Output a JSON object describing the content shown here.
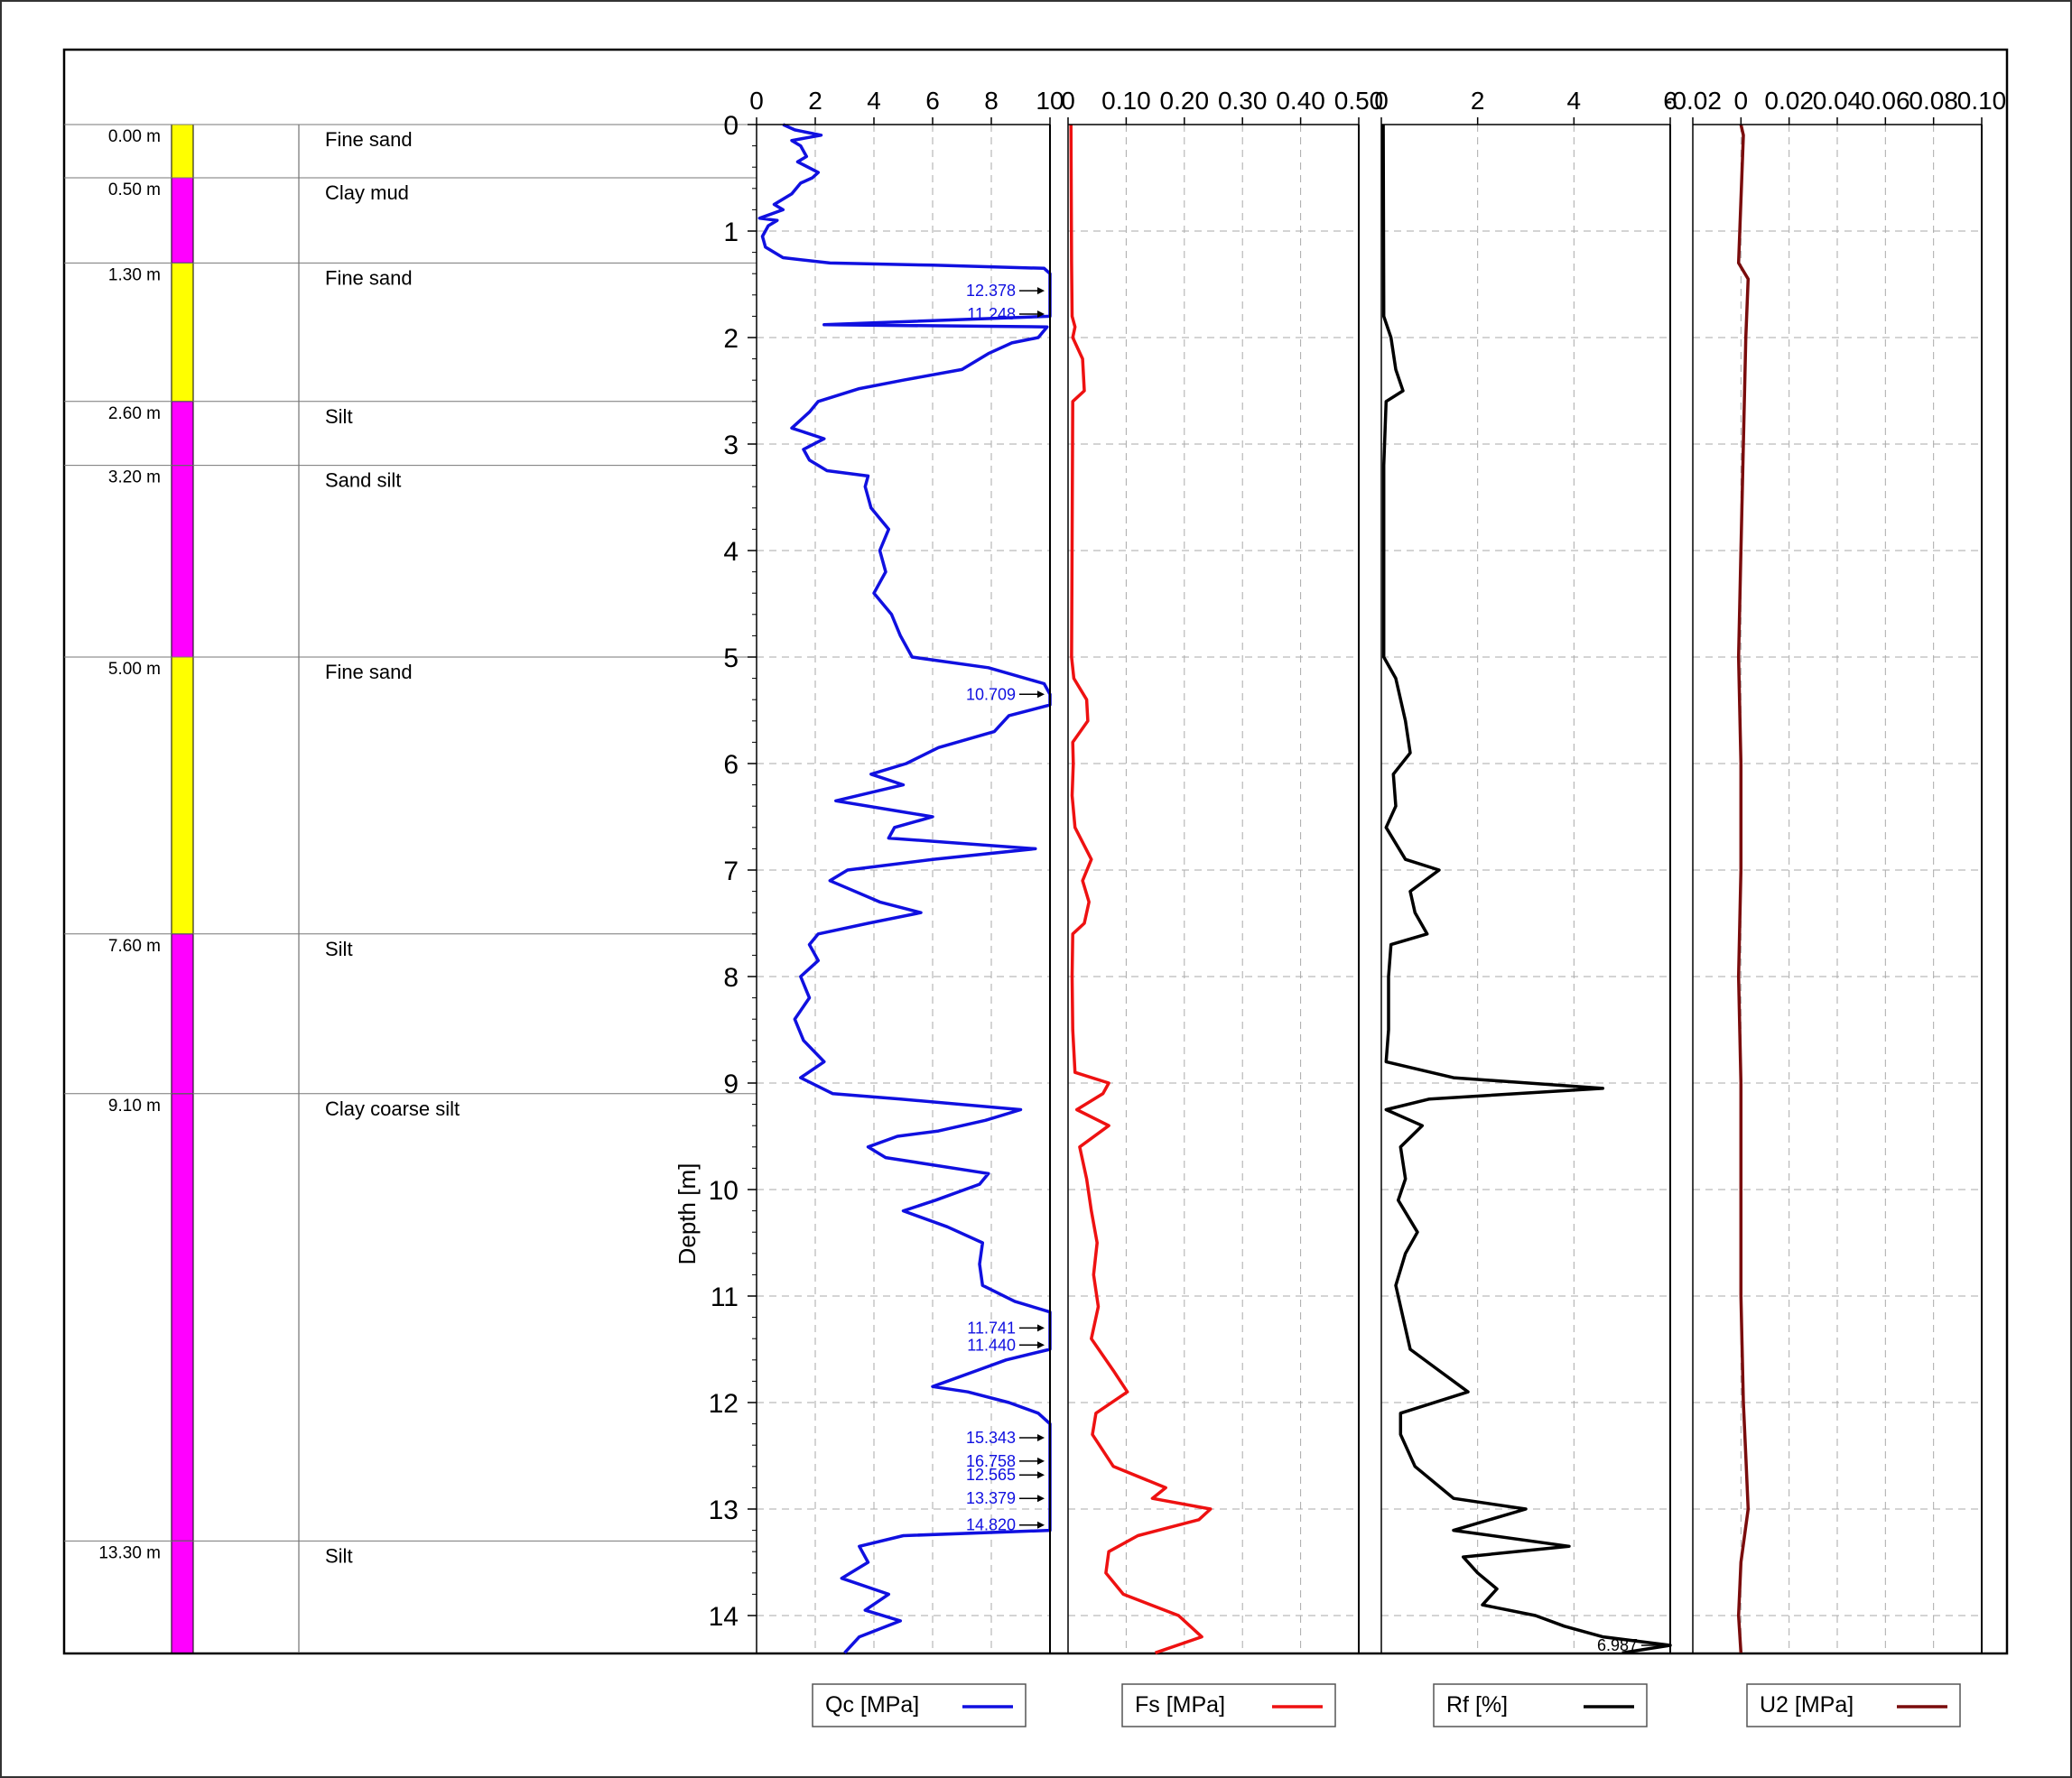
{
  "chart_data": {
    "type": "line",
    "ylabel": "Depth [m]",
    "depth_ticks": [
      "0",
      "1",
      "2",
      "3",
      "4",
      "5",
      "6",
      "7",
      "8",
      "9",
      "10",
      "11",
      "12",
      "13",
      "14"
    ],
    "ylim": [
      0,
      14.35
    ],
    "colors": {
      "qc": "#1010e0",
      "fs": "#ee1111",
      "rf": "#000000",
      "u2": "#7a0c0c",
      "sand": "#ffff00",
      "silt": "#ff00ff"
    },
    "layers": [
      {
        "top": 0.0,
        "bottom": 0.5,
        "depth_label": "0.00 m",
        "name": "Fine sand",
        "kind": "sand"
      },
      {
        "top": 0.5,
        "bottom": 1.3,
        "depth_label": "0.50 m",
        "name": "Clay mud",
        "kind": "silt"
      },
      {
        "top": 1.3,
        "bottom": 2.6,
        "depth_label": "1.30 m",
        "name": "Fine sand",
        "kind": "sand"
      },
      {
        "top": 2.6,
        "bottom": 3.2,
        "depth_label": "2.60 m",
        "name": "Silt",
        "kind": "silt"
      },
      {
        "top": 3.2,
        "bottom": 5.0,
        "depth_label": "3.20 m",
        "name": "Sand silt",
        "kind": "silt"
      },
      {
        "top": 5.0,
        "bottom": 7.6,
        "depth_label": "5.00 m",
        "name": "Fine sand",
        "kind": "sand"
      },
      {
        "top": 7.6,
        "bottom": 9.1,
        "depth_label": "7.60 m",
        "name": "Silt",
        "kind": "silt"
      },
      {
        "top": 9.1,
        "bottom": 13.3,
        "depth_label": "9.10 m",
        "name": "Clay coarse silt",
        "kind": "silt"
      },
      {
        "top": 13.3,
        "bottom": 14.35,
        "depth_label": "13.30 m",
        "name": "Silt",
        "kind": "silt"
      }
    ],
    "tracks": [
      {
        "key": "qc",
        "legend": "Qc  [MPa]",
        "xlim": [
          0,
          10
        ],
        "ticks": [
          0,
          2,
          4,
          6,
          8,
          10
        ],
        "tick_labels": [
          "0",
          "2",
          "4",
          "6",
          "8",
          "10"
        ]
      },
      {
        "key": "fs",
        "legend": "Fs  [MPa]",
        "xlim": [
          0,
          0.5
        ],
        "ticks": [
          0,
          0.1,
          0.2,
          0.3,
          0.4,
          0.5
        ],
        "tick_labels": [
          "0",
          "0.10",
          "0.20",
          "0.30",
          "0.40",
          "0.50"
        ]
      },
      {
        "key": "rf",
        "legend": "Rf  [%]",
        "xlim": [
          0,
          6
        ],
        "ticks": [
          0,
          2,
          4,
          6
        ],
        "tick_labels": [
          "0",
          "2",
          "4",
          "6"
        ]
      },
      {
        "key": "u2",
        "legend": "U2  [MPa]",
        "xlim": [
          -0.02,
          0.1
        ],
        "ticks": [
          -0.02,
          0,
          0.02,
          0.04,
          0.06,
          0.08,
          0.1
        ],
        "tick_labels": [
          "-0.02",
          "0",
          "0.02",
          "0.04",
          "0.06",
          "0.08",
          "0.10"
        ]
      }
    ],
    "qc_annotations": [
      {
        "depth": 1.56,
        "text": "12.378"
      },
      {
        "depth": 1.78,
        "text": "11.248"
      },
      {
        "depth": 5.35,
        "text": "10.709"
      },
      {
        "depth": 11.3,
        "text": "11.741"
      },
      {
        "depth": 11.46,
        "text": "11.440"
      },
      {
        "depth": 12.33,
        "text": "15.343"
      },
      {
        "depth": 12.55,
        "text": "16.758"
      },
      {
        "depth": 12.68,
        "text": "12.565"
      },
      {
        "depth": 12.9,
        "text": "13.379"
      },
      {
        "depth": 13.15,
        "text": "14.820"
      }
    ],
    "rf_annotations": [
      {
        "depth": 14.28,
        "text": "6.987"
      }
    ],
    "series": {
      "qc": [
        [
          0,
          0.9
        ],
        [
          0.05,
          1.3
        ],
        [
          0.1,
          2.2
        ],
        [
          0.15,
          1.2
        ],
        [
          0.2,
          1.5
        ],
        [
          0.3,
          1.7
        ],
        [
          0.35,
          1.4
        ],
        [
          0.45,
          2.1
        ],
        [
          0.5,
          1.9
        ],
        [
          0.55,
          1.5
        ],
        [
          0.65,
          1.2
        ],
        [
          0.75,
          0.6
        ],
        [
          0.8,
          0.9
        ],
        [
          0.88,
          0.1
        ],
        [
          0.9,
          0.7
        ],
        [
          0.95,
          0.4
        ],
        [
          1.05,
          0.2
        ],
        [
          1.15,
          0.3
        ],
        [
          1.25,
          0.9
        ],
        [
          1.3,
          2.5
        ],
        [
          1.32,
          6.0
        ],
        [
          1.35,
          9.8
        ],
        [
          1.4,
          10.1
        ],
        [
          1.56,
          10.1
        ],
        [
          1.8,
          10.1
        ],
        [
          1.88,
          2.3
        ],
        [
          1.9,
          9.9
        ],
        [
          2.0,
          9.6
        ],
        [
          2.05,
          8.7
        ],
        [
          2.15,
          7.9
        ],
        [
          2.3,
          7.0
        ],
        [
          2.4,
          5.0
        ],
        [
          2.48,
          3.5
        ],
        [
          2.6,
          2.1
        ],
        [
          2.7,
          1.8
        ],
        [
          2.85,
          1.2
        ],
        [
          2.95,
          2.3
        ],
        [
          3.05,
          1.6
        ],
        [
          3.15,
          1.8
        ],
        [
          3.25,
          2.4
        ],
        [
          3.3,
          3.8
        ],
        [
          3.4,
          3.7
        ],
        [
          3.6,
          3.9
        ],
        [
          3.8,
          4.5
        ],
        [
          4.0,
          4.2
        ],
        [
          4.2,
          4.4
        ],
        [
          4.4,
          4.0
        ],
        [
          4.6,
          4.6
        ],
        [
          4.8,
          4.9
        ],
        [
          5.0,
          5.3
        ],
        [
          5.1,
          7.9
        ],
        [
          5.25,
          9.8
        ],
        [
          5.35,
          10.1
        ],
        [
          5.45,
          10.1
        ],
        [
          5.55,
          8.6
        ],
        [
          5.7,
          8.1
        ],
        [
          5.85,
          6.2
        ],
        [
          6.0,
          5.1
        ],
        [
          6.1,
          3.9
        ],
        [
          6.2,
          5.0
        ],
        [
          6.35,
          2.7
        ],
        [
          6.45,
          4.9
        ],
        [
          6.5,
          6.0
        ],
        [
          6.6,
          4.7
        ],
        [
          6.7,
          4.5
        ],
        [
          6.8,
          9.5
        ],
        [
          6.9,
          6.0
        ],
        [
          7.0,
          3.1
        ],
        [
          7.1,
          2.5
        ],
        [
          7.3,
          4.2
        ],
        [
          7.4,
          5.6
        ],
        [
          7.5,
          3.8
        ],
        [
          7.6,
          2.1
        ],
        [
          7.7,
          1.8
        ],
        [
          7.85,
          2.1
        ],
        [
          8.0,
          1.5
        ],
        [
          8.2,
          1.8
        ],
        [
          8.4,
          1.3
        ],
        [
          8.6,
          1.6
        ],
        [
          8.8,
          2.3
        ],
        [
          8.95,
          1.5
        ],
        [
          9.1,
          2.6
        ],
        [
          9.15,
          4.9
        ],
        [
          9.25,
          9.0
        ],
        [
          9.35,
          7.8
        ],
        [
          9.45,
          6.2
        ],
        [
          9.5,
          4.8
        ],
        [
          9.6,
          3.8
        ],
        [
          9.7,
          4.4
        ],
        [
          9.85,
          7.9
        ],
        [
          9.95,
          7.6
        ],
        [
          10.1,
          6.1
        ],
        [
          10.2,
          5.0
        ],
        [
          10.35,
          6.5
        ],
        [
          10.5,
          7.7
        ],
        [
          10.7,
          7.6
        ],
        [
          10.9,
          7.7
        ],
        [
          11.05,
          8.8
        ],
        [
          11.15,
          10.1
        ],
        [
          11.3,
          10.1
        ],
        [
          11.5,
          10.1
        ],
        [
          11.6,
          8.5
        ],
        [
          11.7,
          7.5
        ],
        [
          11.85,
          6.0
        ],
        [
          11.9,
          7.2
        ],
        [
          12.0,
          8.6
        ],
        [
          12.1,
          9.6
        ],
        [
          12.2,
          10.1
        ],
        [
          12.4,
          10.1
        ],
        [
          12.7,
          10.1
        ],
        [
          12.85,
          10.1
        ],
        [
          13.05,
          10.1
        ],
        [
          13.2,
          10.1
        ],
        [
          13.25,
          5.0
        ],
        [
          13.35,
          3.5
        ],
        [
          13.5,
          3.8
        ],
        [
          13.65,
          2.9
        ],
        [
          13.8,
          4.5
        ],
        [
          13.95,
          3.7
        ],
        [
          14.05,
          4.9
        ],
        [
          14.2,
          3.5
        ],
        [
          14.35,
          3.0
        ]
      ],
      "fs": [
        [
          0,
          0.005
        ],
        [
          1.3,
          0.006
        ],
        [
          1.8,
          0.007
        ],
        [
          1.9,
          0.012
        ],
        [
          2.0,
          0.008
        ],
        [
          2.2,
          0.025
        ],
        [
          2.5,
          0.028
        ],
        [
          2.6,
          0.008
        ],
        [
          5.0,
          0.006
        ],
        [
          5.2,
          0.01
        ],
        [
          5.4,
          0.032
        ],
        [
          5.6,
          0.034
        ],
        [
          5.8,
          0.008
        ],
        [
          6.0,
          0.009
        ],
        [
          6.3,
          0.007
        ],
        [
          6.6,
          0.012
        ],
        [
          6.9,
          0.04
        ],
        [
          7.1,
          0.025
        ],
        [
          7.3,
          0.036
        ],
        [
          7.5,
          0.028
        ],
        [
          7.6,
          0.008
        ],
        [
          8.0,
          0.007
        ],
        [
          8.5,
          0.008
        ],
        [
          8.9,
          0.012
        ],
        [
          9.0,
          0.07
        ],
        [
          9.1,
          0.06
        ],
        [
          9.25,
          0.015
        ],
        [
          9.4,
          0.07
        ],
        [
          9.6,
          0.02
        ],
        [
          9.9,
          0.032
        ],
        [
          10.2,
          0.04
        ],
        [
          10.5,
          0.05
        ],
        [
          10.8,
          0.044
        ],
        [
          11.1,
          0.052
        ],
        [
          11.4,
          0.04
        ],
        [
          11.7,
          0.078
        ],
        [
          11.9,
          0.102
        ],
        [
          12.1,
          0.048
        ],
        [
          12.3,
          0.042
        ],
        [
          12.6,
          0.078
        ],
        [
          12.8,
          0.168
        ],
        [
          12.9,
          0.145
        ],
        [
          13.0,
          0.245
        ],
        [
          13.1,
          0.225
        ],
        [
          13.25,
          0.12
        ],
        [
          13.4,
          0.07
        ],
        [
          13.6,
          0.065
        ],
        [
          13.8,
          0.095
        ],
        [
          14.0,
          0.19
        ],
        [
          14.2,
          0.23
        ],
        [
          14.35,
          0.15
        ]
      ],
      "rf": [
        [
          0,
          0.04
        ],
        [
          1.8,
          0.05
        ],
        [
          2.0,
          0.2
        ],
        [
          2.3,
          0.3
        ],
        [
          2.5,
          0.45
        ],
        [
          2.6,
          0.1
        ],
        [
          3.2,
          0.05
        ],
        [
          5.0,
          0.05
        ],
        [
          5.2,
          0.3
        ],
        [
          5.6,
          0.5
        ],
        [
          5.9,
          0.6
        ],
        [
          6.1,
          0.25
        ],
        [
          6.4,
          0.3
        ],
        [
          6.6,
          0.1
        ],
        [
          6.9,
          0.5
        ],
        [
          7.0,
          1.2
        ],
        [
          7.2,
          0.6
        ],
        [
          7.4,
          0.7
        ],
        [
          7.6,
          0.95
        ],
        [
          7.7,
          0.2
        ],
        [
          8.0,
          0.15
        ],
        [
          8.5,
          0.15
        ],
        [
          8.8,
          0.1
        ],
        [
          8.95,
          1.5
        ],
        [
          9.05,
          4.6
        ],
        [
          9.15,
          1.0
        ],
        [
          9.25,
          0.1
        ],
        [
          9.4,
          0.85
        ],
        [
          9.6,
          0.4
        ],
        [
          9.9,
          0.5
        ],
        [
          10.1,
          0.35
        ],
        [
          10.4,
          0.75
        ],
        [
          10.6,
          0.5
        ],
        [
          10.9,
          0.3
        ],
        [
          11.2,
          0.45
        ],
        [
          11.5,
          0.6
        ],
        [
          11.7,
          1.2
        ],
        [
          11.9,
          1.8
        ],
        [
          12.1,
          0.4
        ],
        [
          12.3,
          0.4
        ],
        [
          12.6,
          0.7
        ],
        [
          12.9,
          1.5
        ],
        [
          13.0,
          3.0
        ],
        [
          13.2,
          1.5
        ],
        [
          13.35,
          3.9
        ],
        [
          13.45,
          1.7
        ],
        [
          13.6,
          2.0
        ],
        [
          13.75,
          2.4
        ],
        [
          13.9,
          2.1
        ],
        [
          14.0,
          3.2
        ],
        [
          14.1,
          3.8
        ],
        [
          14.2,
          4.6
        ],
        [
          14.28,
          6.987
        ],
        [
          14.35,
          5.0
        ]
      ],
      "u2": [
        [
          0,
          0
        ],
        [
          0.1,
          0.001
        ],
        [
          1.3,
          -0.001
        ],
        [
          1.45,
          0.003
        ],
        [
          2.0,
          0.002
        ],
        [
          3.0,
          0.001
        ],
        [
          4.0,
          0.0
        ],
        [
          5.0,
          -0.001
        ],
        [
          6.0,
          0.0
        ],
        [
          7.0,
          0.0
        ],
        [
          8.0,
          -0.001
        ],
        [
          9.0,
          0.0
        ],
        [
          10.0,
          0.0
        ],
        [
          11.0,
          0.0
        ],
        [
          12.0,
          0.001
        ],
        [
          12.5,
          0.002
        ],
        [
          13.0,
          0.003
        ],
        [
          13.5,
          0.0
        ],
        [
          14.0,
          -0.001
        ],
        [
          14.35,
          0.0
        ]
      ]
    }
  }
}
